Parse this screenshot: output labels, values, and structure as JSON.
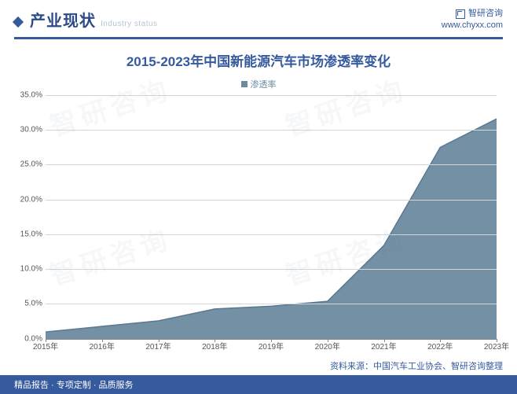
{
  "colors": {
    "accent": "#355a9d",
    "area_fill": "#6c8aa0",
    "area_stroke": "#5a7890",
    "grid": "#d6d6d6",
    "axis": "#888888",
    "title_text": "#355a9d",
    "header_text": "#2b4a86",
    "sub_text": "#b8c2d8",
    "brand_text": "#355a9d",
    "source_text": "#355a9d",
    "footer_bg": "#355a9d",
    "footer_text": "#ffffff",
    "legend_text": "#6c8aa0",
    "x_label_text": "#555555",
    "y_label_text": "#555555"
  },
  "header": {
    "section_title": "产业现状",
    "section_sub": "Industry status",
    "brand_name": "智研咨询",
    "brand_url": "www.chyxx.com"
  },
  "chart": {
    "title": "2015-2023年中国新能源汽车市场渗透率变化",
    "legend_label": "渗透率",
    "type": "area",
    "ylim": [
      0,
      35
    ],
    "ytick_step": 5,
    "y_suffix": "%",
    "y_decimals": 1,
    "categories": [
      "2015年",
      "2016年",
      "2017年",
      "2018年",
      "2019年",
      "2020年",
      "2021年",
      "2022年",
      "2023年"
    ],
    "values": [
      1.0,
      1.8,
      2.6,
      4.3,
      4.7,
      5.4,
      13.4,
      27.5,
      31.6
    ],
    "title_fontsize": 17,
    "label_fontsize": 10
  },
  "source": {
    "label": "资料来源：中国汽车工业协会、智研咨询整理"
  },
  "footer": {
    "text": "精品报告 · 专项定制 · 品质服务"
  },
  "watermark": {
    "text": "智研咨询"
  }
}
